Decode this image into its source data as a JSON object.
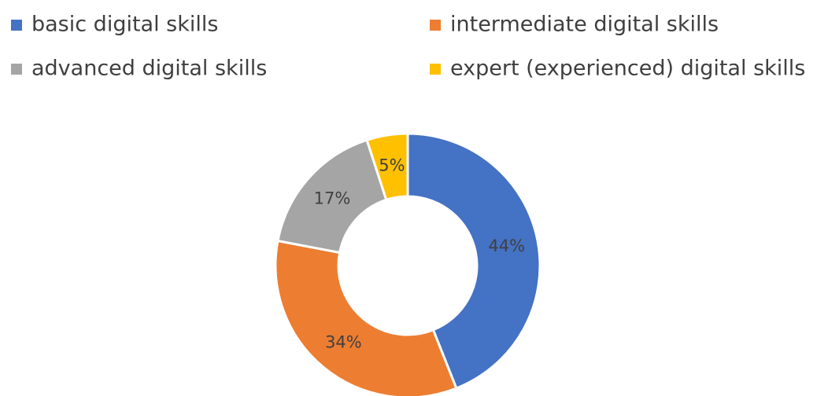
{
  "chart_data": {
    "type": "donut",
    "categories": [
      "basic digital skills",
      "intermediate digital skills",
      "advanced digital skills",
      "expert (experienced) digital skills"
    ],
    "values": [
      44,
      34,
      17,
      5
    ],
    "value_labels": [
      "44%",
      "34%",
      "17%",
      "5%"
    ],
    "colors": [
      "#4472c4",
      "#ed7d31",
      "#a5a5a5",
      "#ffc000"
    ],
    "legend": "top"
  }
}
